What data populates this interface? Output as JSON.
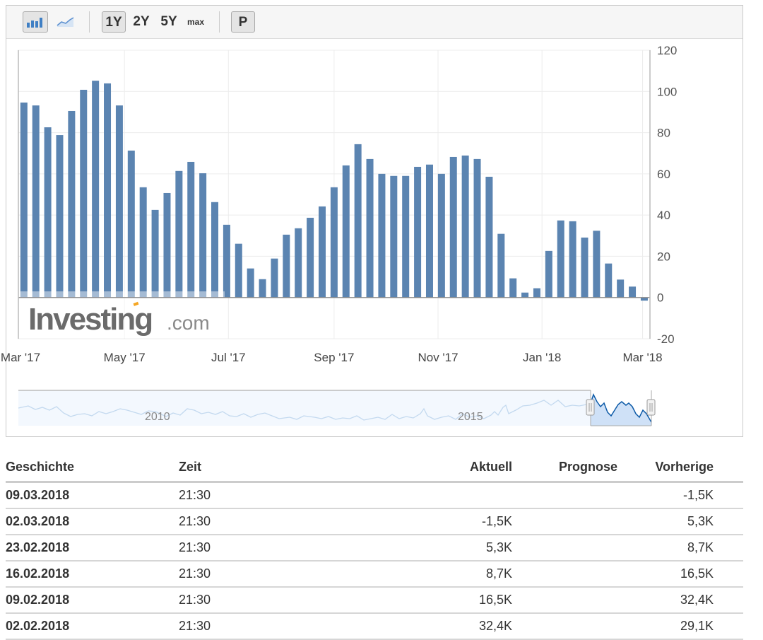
{
  "toolbar": {
    "buttons": [
      {
        "icon": "bar-chart-icon",
        "selected": true
      },
      {
        "icon": "line-chart-icon",
        "selected": false
      }
    ],
    "ranges": [
      {
        "label": "1Y",
        "selected": true
      },
      {
        "label": "2Y",
        "selected": false
      },
      {
        "label": "5Y",
        "selected": false
      },
      {
        "label": "max",
        "selected": false
      }
    ],
    "p_label": "P"
  },
  "watermark": "Investing.com",
  "colors": {
    "bar": "#5b84b1",
    "grid": "#ececec",
    "navigator_fill": "#cfe1f7",
    "navigator_line": "#0e5ba8"
  },
  "chart_data": {
    "type": "bar",
    "title": "",
    "xlabel": "",
    "ylabel": "",
    "ylim": [
      -20,
      120
    ],
    "yticks": [
      "120",
      "100",
      "80",
      "60",
      "40",
      "20",
      "0",
      "-20"
    ],
    "xticks": [
      {
        "date": "2017-03-01",
        "label": "Mar '17"
      },
      {
        "date": "2017-05-01",
        "label": "May '17"
      },
      {
        "date": "2017-07-01",
        "label": "Jul '17"
      },
      {
        "date": "2017-09-01",
        "label": "Sep '17"
      },
      {
        "date": "2017-11-01",
        "label": "Nov '17"
      },
      {
        "date": "2018-01-01",
        "label": "Jan '18"
      },
      {
        "date": "2018-03-01",
        "label": "Mar '18"
      }
    ],
    "xlim": [
      "2017-03-01",
      "2018-03-07"
    ],
    "grid": true,
    "categories": [
      "2017-03-03",
      "2017-03-10",
      "2017-03-17",
      "2017-03-24",
      "2017-03-31",
      "2017-04-07",
      "2017-04-14",
      "2017-04-21",
      "2017-04-28",
      "2017-05-05",
      "2017-05-12",
      "2017-05-19",
      "2017-05-26",
      "2017-06-02",
      "2017-06-09",
      "2017-06-16",
      "2017-06-23",
      "2017-06-30",
      "2017-07-07",
      "2017-07-14",
      "2017-07-21",
      "2017-07-28",
      "2017-08-04",
      "2017-08-11",
      "2017-08-18",
      "2017-08-25",
      "2017-09-01",
      "2017-09-08",
      "2017-09-15",
      "2017-09-22",
      "2017-09-29",
      "2017-10-06",
      "2017-10-13",
      "2017-10-20",
      "2017-10-27",
      "2017-11-03",
      "2017-11-10",
      "2017-11-17",
      "2017-11-24",
      "2017-12-01",
      "2017-12-08",
      "2017-12-15",
      "2017-12-22",
      "2017-12-29",
      "2018-01-05",
      "2018-01-12",
      "2018-01-19",
      "2018-01-26",
      "2018-02-02",
      "2018-02-09",
      "2018-02-16",
      "2018-02-23",
      "2018-03-02"
    ],
    "values": [
      94.6,
      93.2,
      82.6,
      78.8,
      90.5,
      100.8,
      105.2,
      103.9,
      93.2,
      71.3,
      53.5,
      42.5,
      50.7,
      61.4,
      65.8,
      60.3,
      46.3,
      35.3,
      26.1,
      14.1,
      8.9,
      18.9,
      30.5,
      33.6,
      38.7,
      44.2,
      53.5,
      64.1,
      74.4,
      67.2,
      60.0,
      59.0,
      59.0,
      63.4,
      64.5,
      60.0,
      68.2,
      68.9,
      67.2,
      58.6,
      30.9,
      9.3,
      2.4,
      4.5,
      22.6,
      37.4,
      37.0,
      29.1,
      32.4,
      16.5,
      8.7,
      5.3,
      -1.5
    ],
    "navigator": {
      "labels": [
        "2010",
        "2015"
      ]
    }
  },
  "table": {
    "headers": [
      "Geschichte",
      "Zeit",
      "Aktuell",
      "Prognose",
      "Vorherige"
    ],
    "rows": [
      [
        "09.03.2018",
        "21:30",
        "",
        "",
        "-1,5K"
      ],
      [
        "02.03.2018",
        "21:30",
        "-1,5K",
        "",
        "5,3K"
      ],
      [
        "23.02.2018",
        "21:30",
        "5,3K",
        "",
        "8,7K"
      ],
      [
        "16.02.2018",
        "21:30",
        "8,7K",
        "",
        "16,5K"
      ],
      [
        "09.02.2018",
        "21:30",
        "16,5K",
        "",
        "32,4K"
      ],
      [
        "02.02.2018",
        "21:30",
        "32,4K",
        "",
        "29,1K"
      ]
    ]
  }
}
